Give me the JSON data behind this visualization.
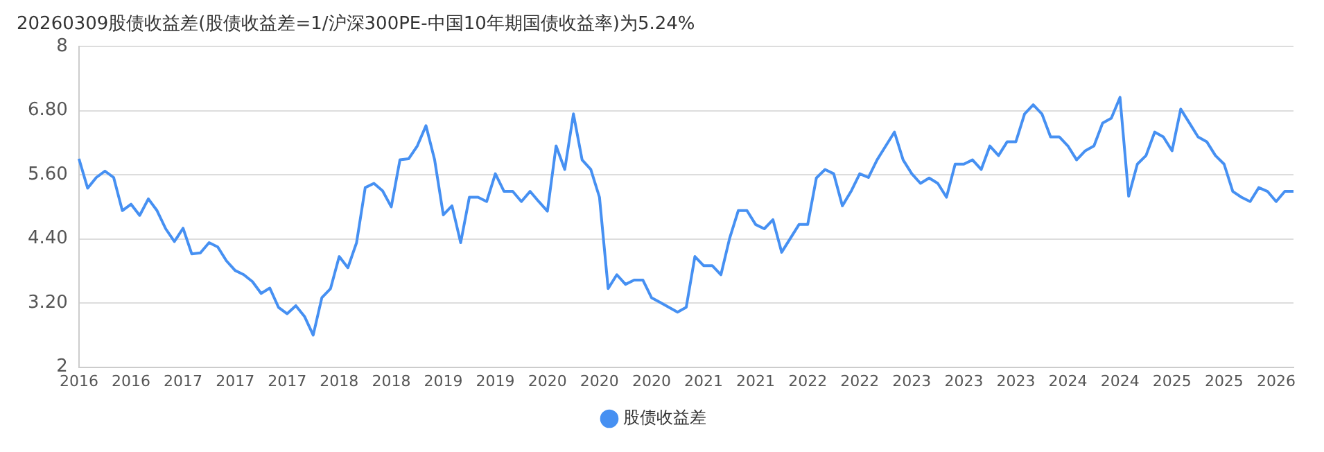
{
  "chart_data": {
    "type": "line",
    "title": "20260309股债收益差(股债收益差=1/沪深300PE-中国10年期国债收益率)为5.24%",
    "categories": [
      "2016",
      null,
      null,
      null,
      null,
      null,
      "2016",
      null,
      null,
      null,
      null,
      null,
      "2017",
      null,
      null,
      null,
      null,
      null,
      "2017",
      null,
      null,
      null,
      null,
      null,
      "2017",
      null,
      null,
      null,
      null,
      null,
      "2018",
      null,
      null,
      null,
      null,
      null,
      "2018",
      null,
      null,
      null,
      null,
      null,
      "2019",
      null,
      null,
      null,
      null,
      null,
      "2019",
      null,
      null,
      null,
      null,
      null,
      "2020",
      null,
      null,
      null,
      null,
      null,
      "2020",
      null,
      null,
      null,
      null,
      null,
      "2020",
      null,
      null,
      null,
      null,
      null,
      "2021",
      null,
      null,
      null,
      null,
      null,
      "2021",
      null,
      null,
      null,
      null,
      null,
      "2022",
      null,
      null,
      null,
      null,
      null,
      "2022",
      null,
      null,
      null,
      null,
      null,
      "2023",
      null,
      null,
      null,
      null,
      null,
      "2023",
      null,
      null,
      null,
      null,
      null,
      "2023",
      null,
      null,
      null,
      null,
      null,
      "2024",
      null,
      null,
      null,
      null,
      null,
      "2024",
      null,
      null,
      null,
      null,
      null,
      "2025",
      null,
      null,
      null,
      null,
      null,
      "2025",
      null,
      null,
      null,
      null,
      null,
      "2026",
      null,
      null
    ],
    "series": [
      {
        "name": "股债收益差",
        "color": "#4690f2",
        "values": [
          5.9,
          5.35,
          5.55,
          5.67,
          5.55,
          4.93,
          5.05,
          4.84,
          5.15,
          4.93,
          4.59,
          4.35,
          4.6,
          4.12,
          4.14,
          4.33,
          4.25,
          3.99,
          3.81,
          3.73,
          3.6,
          3.38,
          3.48,
          3.12,
          3.0,
          3.15,
          2.95,
          2.6,
          3.3,
          3.47,
          4.07,
          3.86,
          4.33,
          5.36,
          5.44,
          5.3,
          5.0,
          5.88,
          5.9,
          6.14,
          6.52,
          5.88,
          4.85,
          5.02,
          4.33,
          5.18,
          5.18,
          5.1,
          5.62,
          5.29,
          5.29,
          5.1,
          5.29,
          5.1,
          4.92,
          6.14,
          5.7,
          6.74,
          5.88,
          5.7,
          5.18,
          3.47,
          3.73,
          3.55,
          3.63,
          3.63,
          3.3,
          3.21,
          3.12,
          3.03,
          3.12,
          4.07,
          3.9,
          3.9,
          3.73,
          4.41,
          4.93,
          4.93,
          4.67,
          4.59,
          4.76,
          4.15,
          4.41,
          4.67,
          4.67,
          5.54,
          5.7,
          5.62,
          5.02,
          5.29,
          5.62,
          5.55,
          5.88,
          6.14,
          6.4,
          5.88,
          5.62,
          5.44,
          5.54,
          5.44,
          5.18,
          5.8,
          5.8,
          5.88,
          5.7,
          6.14,
          5.96,
          6.22,
          6.22,
          6.74,
          6.91,
          6.74,
          6.31,
          6.31,
          6.14,
          5.88,
          6.05,
          6.14,
          6.57,
          6.66,
          7.05,
          5.2,
          5.8,
          5.96,
          6.4,
          6.31,
          6.05,
          6.83,
          6.57,
          6.31,
          6.22,
          5.96,
          5.8,
          5.29,
          5.18,
          5.1,
          5.36,
          5.29,
          5.1,
          5.29,
          5.29
        ]
      }
    ],
    "ylim": [
      2,
      8
    ],
    "yticks": [
      2,
      {
        "value": 3.2,
        "label": "3.20"
      },
      {
        "value": 4.4,
        "label": "4.40"
      },
      {
        "value": 5.6,
        "label": "5.60"
      },
      {
        "value": 6.8,
        "label": "6.80"
      },
      8
    ],
    "grid": "y",
    "legend": "bottom"
  }
}
